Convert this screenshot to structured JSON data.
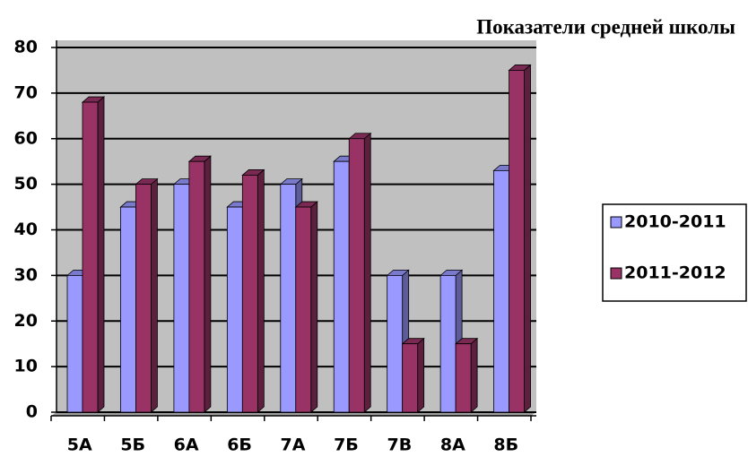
{
  "chart_data": {
    "type": "bar",
    "title": "Показатели средней школы",
    "categories": [
      "5А",
      "5Б",
      "6А",
      "6Б",
      "7А",
      "7Б",
      "7В",
      "8А",
      "8Б"
    ],
    "series": [
      {
        "name": "2010-2011",
        "color": "#9999ff",
        "values": [
          30,
          45,
          50,
          45,
          50,
          55,
          30,
          30,
          53
        ]
      },
      {
        "name": "2011-2012",
        "color": "#993366",
        "values": [
          68,
          50,
          55,
          52,
          45,
          60,
          15,
          15,
          75
        ]
      }
    ],
    "ylim": [
      0,
      80
    ],
    "yticks": [
      0,
      10,
      20,
      30,
      40,
      50,
      60,
      70,
      80
    ],
    "grid": true,
    "legend": "right"
  }
}
